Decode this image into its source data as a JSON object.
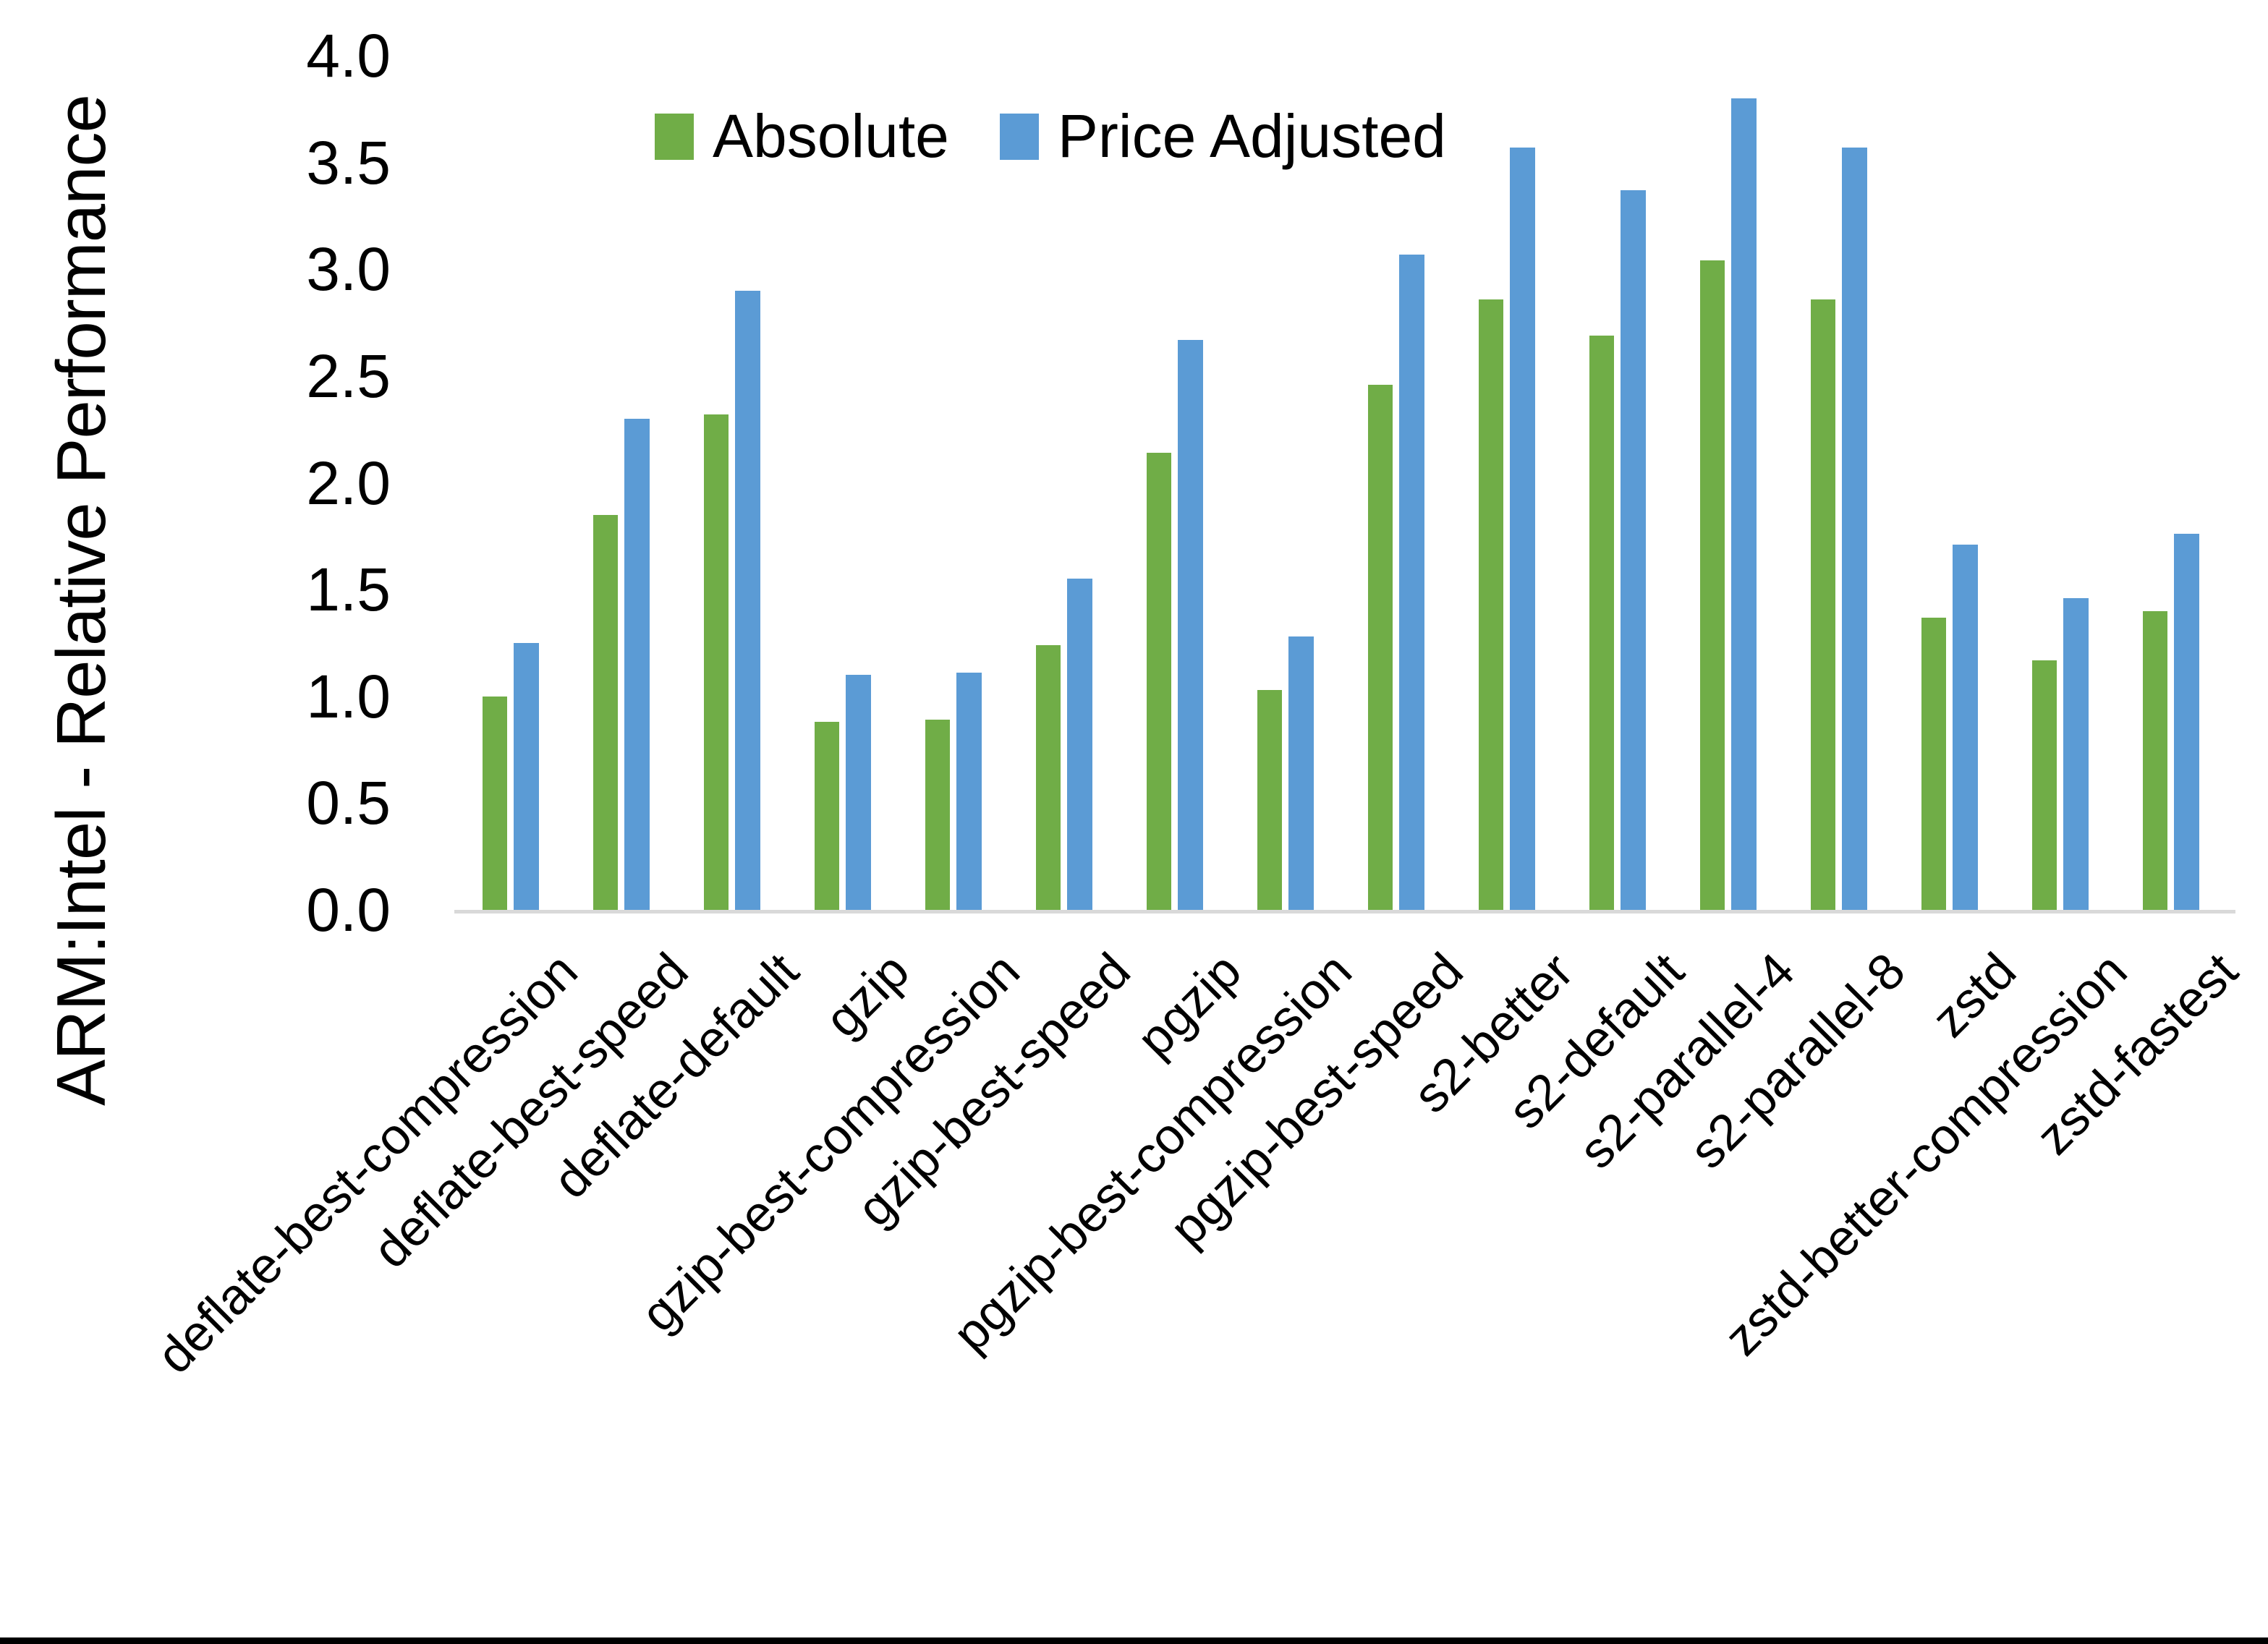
{
  "chart_data": {
    "type": "bar",
    "title": "",
    "ylabel": "ARM:Intel - Relative Performance",
    "xlabel": "",
    "ylim": [
      0.0,
      4.0
    ],
    "ytick_step": 0.5,
    "yticks": [
      "0.0",
      "0.5",
      "1.0",
      "1.5",
      "2.0",
      "2.5",
      "3.0",
      "3.5",
      "4.0"
    ],
    "grid": false,
    "legend_position": "top-center",
    "categories": [
      "deflate-best-compression",
      "deflate-best-speed",
      "deflate-default",
      "gzip",
      "gzip-best-compression",
      "gzip-best-speed",
      "pgzip",
      "pgzip-best-compression",
      "pgzip-best-speed",
      "s2-better",
      "s2-default",
      "s2-parallel-4",
      "s2-parallel-8",
      "zstd",
      "zstd-better-compression",
      "zstd-fastest"
    ],
    "series": [
      {
        "name": "Absolute",
        "color": "#70AD47",
        "values": [
          1.0,
          1.85,
          2.32,
          0.88,
          0.89,
          1.24,
          2.14,
          1.03,
          2.46,
          2.86,
          2.69,
          3.04,
          2.86,
          1.37,
          1.17,
          1.4
        ]
      },
      {
        "name": "Price Adjusted",
        "color": "#5B9BD5",
        "values": [
          1.25,
          2.3,
          2.9,
          1.1,
          1.11,
          1.55,
          2.67,
          1.28,
          3.07,
          3.57,
          3.37,
          3.8,
          3.57,
          1.71,
          1.46,
          1.76
        ]
      }
    ]
  },
  "colors": {
    "axis_line": "#D9D9D9",
    "text": "#000000",
    "background": "#FFFFFF",
    "bottom_border": "#000000"
  }
}
